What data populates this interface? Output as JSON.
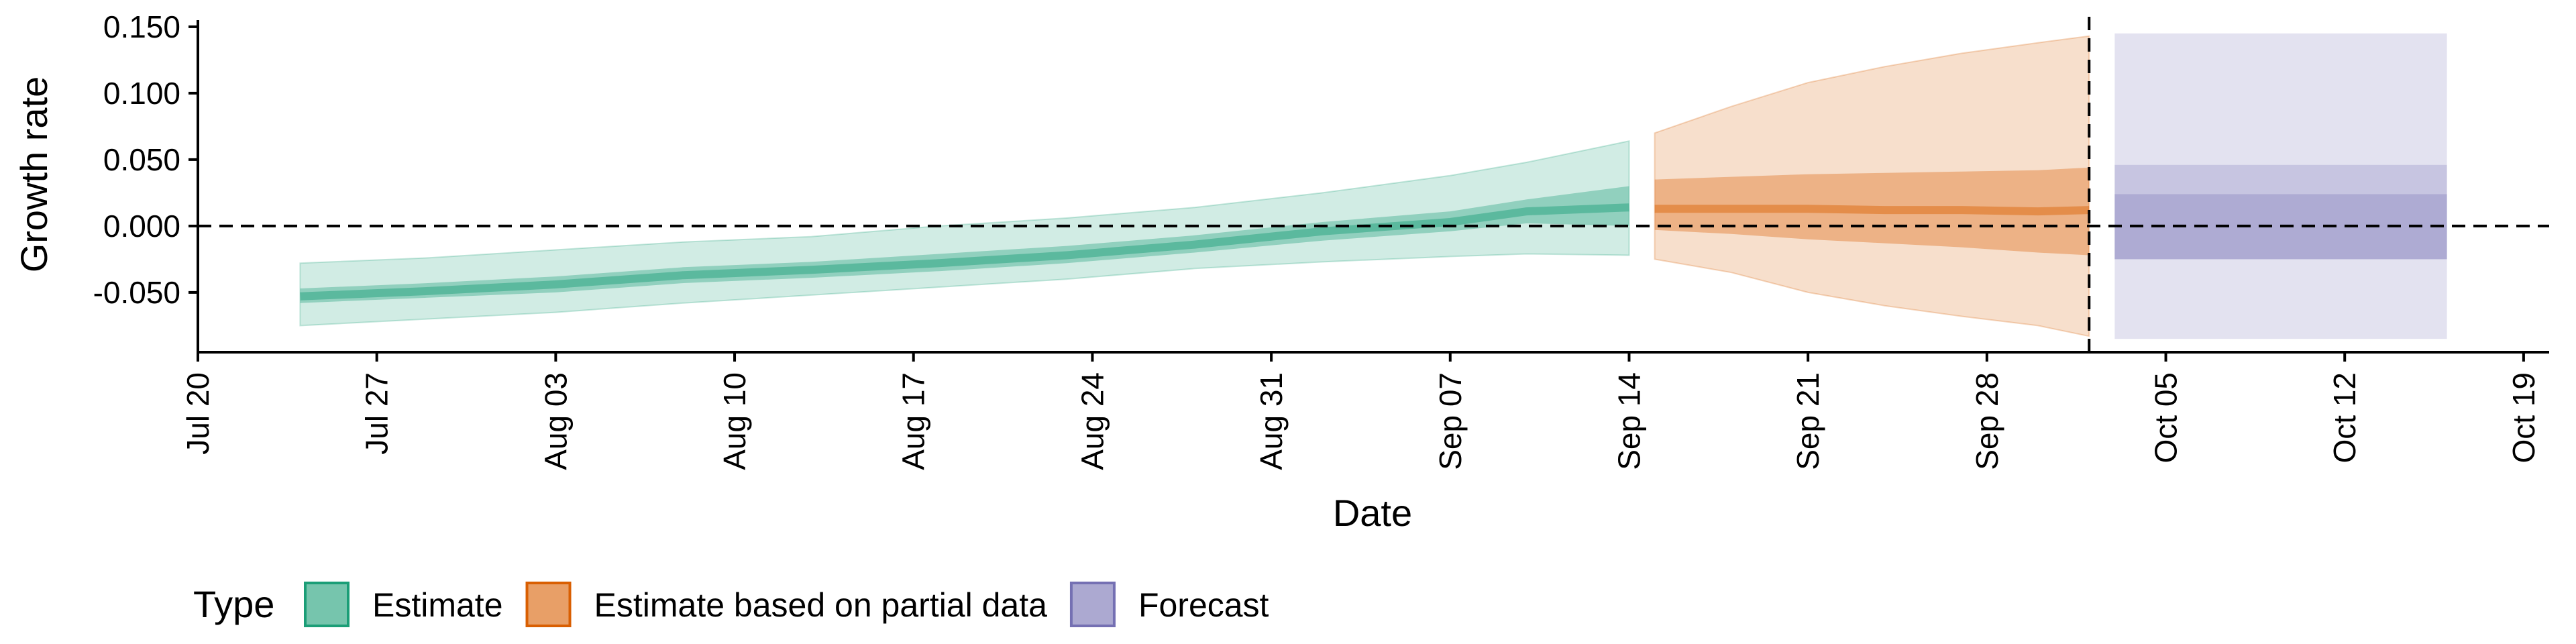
{
  "chart_data": {
    "type": "area",
    "title": "",
    "xlabel": "Date",
    "ylabel": "Growth rate",
    "x_range": [
      "2020-07-20",
      "2020-10-20"
    ],
    "ylim": [
      -0.095,
      0.155
    ],
    "x_ticks": [
      "2020-07-20",
      "2020-07-27",
      "2020-08-03",
      "2020-08-10",
      "2020-08-17",
      "2020-08-24",
      "2020-08-31",
      "2020-09-07",
      "2020-09-14",
      "2020-09-21",
      "2020-09-28",
      "2020-10-05",
      "2020-10-12",
      "2020-10-19"
    ],
    "x_tick_labels": [
      "Jul 20",
      "Jul 27",
      "Aug 03",
      "Aug 10",
      "Aug 17",
      "Aug 24",
      "Aug 31",
      "Sep 07",
      "Sep 14",
      "Sep 21",
      "Sep 28",
      "Oct 05",
      "Oct 12",
      "Oct 19"
    ],
    "y_ticks": [
      -0.05,
      0,
      0.05,
      0.1,
      0.15
    ],
    "y_tick_labels": [
      "-0.050",
      "0.000",
      "0.050",
      "0.100",
      "0.150"
    ],
    "grid": false,
    "reference_lines": [
      {
        "axis": "y",
        "value": 0,
        "style": "dashed"
      },
      {
        "axis": "x",
        "value": "2020-10-02",
        "style": "dashed"
      }
    ],
    "legend": {
      "title": "Type",
      "position": "bottom-left",
      "entries": [
        {
          "label": "Estimate",
          "color": "#1b9e77"
        },
        {
          "label": "Estimate based on partial data",
          "color": "#d95f02"
        },
        {
          "label": "Forecast",
          "color": "#7570b3"
        }
      ]
    },
    "series": [
      {
        "name": "Estimate",
        "color": "#1b9e77",
        "x": [
          "2020-07-24",
          "2020-07-29",
          "2020-08-03",
          "2020-08-08",
          "2020-08-13",
          "2020-08-18",
          "2020-08-23",
          "2020-08-28",
          "2020-09-02",
          "2020-09-07",
          "2020-09-10",
          "2020-09-14"
        ],
        "median": [
          -0.053,
          -0.049,
          -0.044,
          -0.037,
          -0.033,
          -0.028,
          -0.022,
          -0.014,
          -0.004,
          0.003,
          0.011,
          0.014
        ],
        "inner_lower": [
          -0.058,
          -0.054,
          -0.05,
          -0.043,
          -0.039,
          -0.034,
          -0.028,
          -0.02,
          -0.011,
          -0.004,
          0.002,
          0.0
        ],
        "inner_upper": [
          -0.047,
          -0.043,
          -0.038,
          -0.031,
          -0.027,
          -0.021,
          -0.015,
          -0.007,
          0.003,
          0.011,
          0.02,
          0.03
        ],
        "outer_lower": [
          -0.075,
          -0.07,
          -0.065,
          -0.058,
          -0.052,
          -0.046,
          -0.04,
          -0.032,
          -0.027,
          -0.023,
          -0.021,
          -0.022
        ],
        "outer_upper": [
          -0.028,
          -0.024,
          -0.018,
          -0.012,
          -0.008,
          0.0,
          0.006,
          0.014,
          0.025,
          0.038,
          0.048,
          0.064
        ]
      },
      {
        "name": "Estimate based on partial data",
        "color": "#d95f02",
        "x": [
          "2020-09-15",
          "2020-09-18",
          "2020-09-21",
          "2020-09-24",
          "2020-09-27",
          "2020-09-30",
          "2020-10-02"
        ],
        "median": [
          0.013,
          0.013,
          0.013,
          0.012,
          0.012,
          0.011,
          0.012
        ],
        "inner_lower": [
          -0.003,
          -0.006,
          -0.01,
          -0.013,
          -0.016,
          -0.02,
          -0.022
        ],
        "inner_upper": [
          0.035,
          0.037,
          0.039,
          0.04,
          0.041,
          0.042,
          0.044
        ],
        "outer_lower": [
          -0.025,
          -0.035,
          -0.05,
          -0.06,
          -0.068,
          -0.075,
          -0.083
        ],
        "outer_upper": [
          0.07,
          0.09,
          0.108,
          0.12,
          0.13,
          0.138,
          0.143
        ]
      },
      {
        "name": "Forecast",
        "color": "#7570b3",
        "x": [
          "2020-10-03",
          "2020-10-16"
        ],
        "median": [
          0.0,
          0.0
        ],
        "inner_lower": [
          -0.025,
          -0.025
        ],
        "inner_upper": [
          0.024,
          0.024
        ],
        "mid_lower": [
          -0.025,
          -0.025
        ],
        "mid_upper": [
          0.046,
          0.046
        ],
        "outer_lower": [
          -0.085,
          -0.085
        ],
        "outer_upper": [
          0.145,
          0.145
        ]
      }
    ]
  }
}
